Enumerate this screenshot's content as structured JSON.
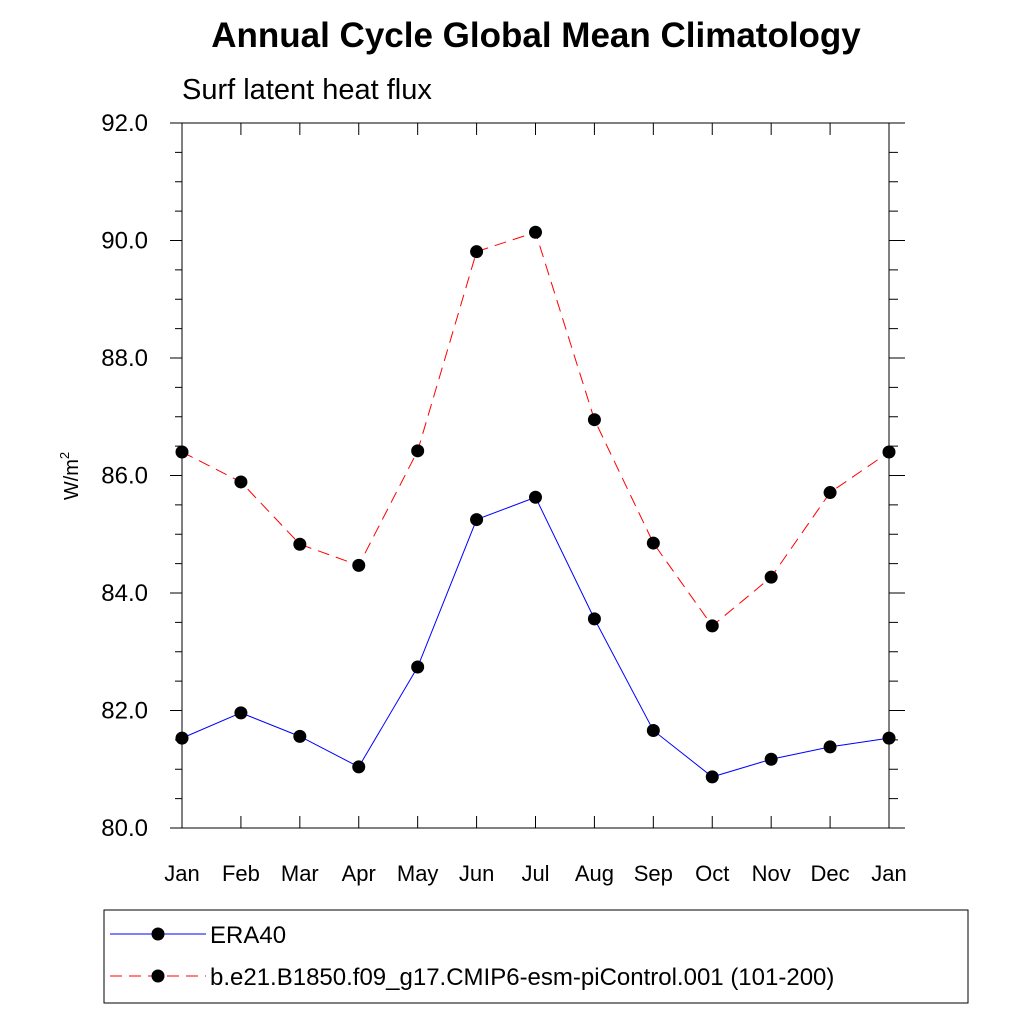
{
  "chart_data": {
    "type": "line",
    "title": "Annual Cycle Global Mean Climatology",
    "subtitle": "Surf latent heat flux",
    "ylabel_base": "W/m",
    "ylabel_sup": "2",
    "ylim": [
      80.0,
      92.0
    ],
    "yticks": [
      "80.0",
      "82.0",
      "84.0",
      "86.0",
      "88.0",
      "90.0",
      "92.0"
    ],
    "categories": [
      "Jan",
      "Feb",
      "Mar",
      "Apr",
      "May",
      "Jun",
      "Jul",
      "Aug",
      "Sep",
      "Oct",
      "Nov",
      "Dec",
      "Jan"
    ],
    "series": [
      {
        "name": "ERA40",
        "color": "#0000ff",
        "dash": "solid",
        "values": [
          81.53,
          81.96,
          81.56,
          81.04,
          82.74,
          85.25,
          85.63,
          83.56,
          81.66,
          80.87,
          81.17,
          81.38,
          81.53
        ]
      },
      {
        "name": "b.e21.B1850.f09_g17.CMIP6-esm-piControl.001 (101-200)",
        "color": "#ff0000",
        "dash": "dashed",
        "values": [
          86.4,
          85.89,
          84.83,
          84.47,
          86.42,
          89.81,
          90.14,
          86.95,
          84.85,
          83.44,
          84.27,
          85.71,
          86.4
        ]
      }
    ]
  }
}
